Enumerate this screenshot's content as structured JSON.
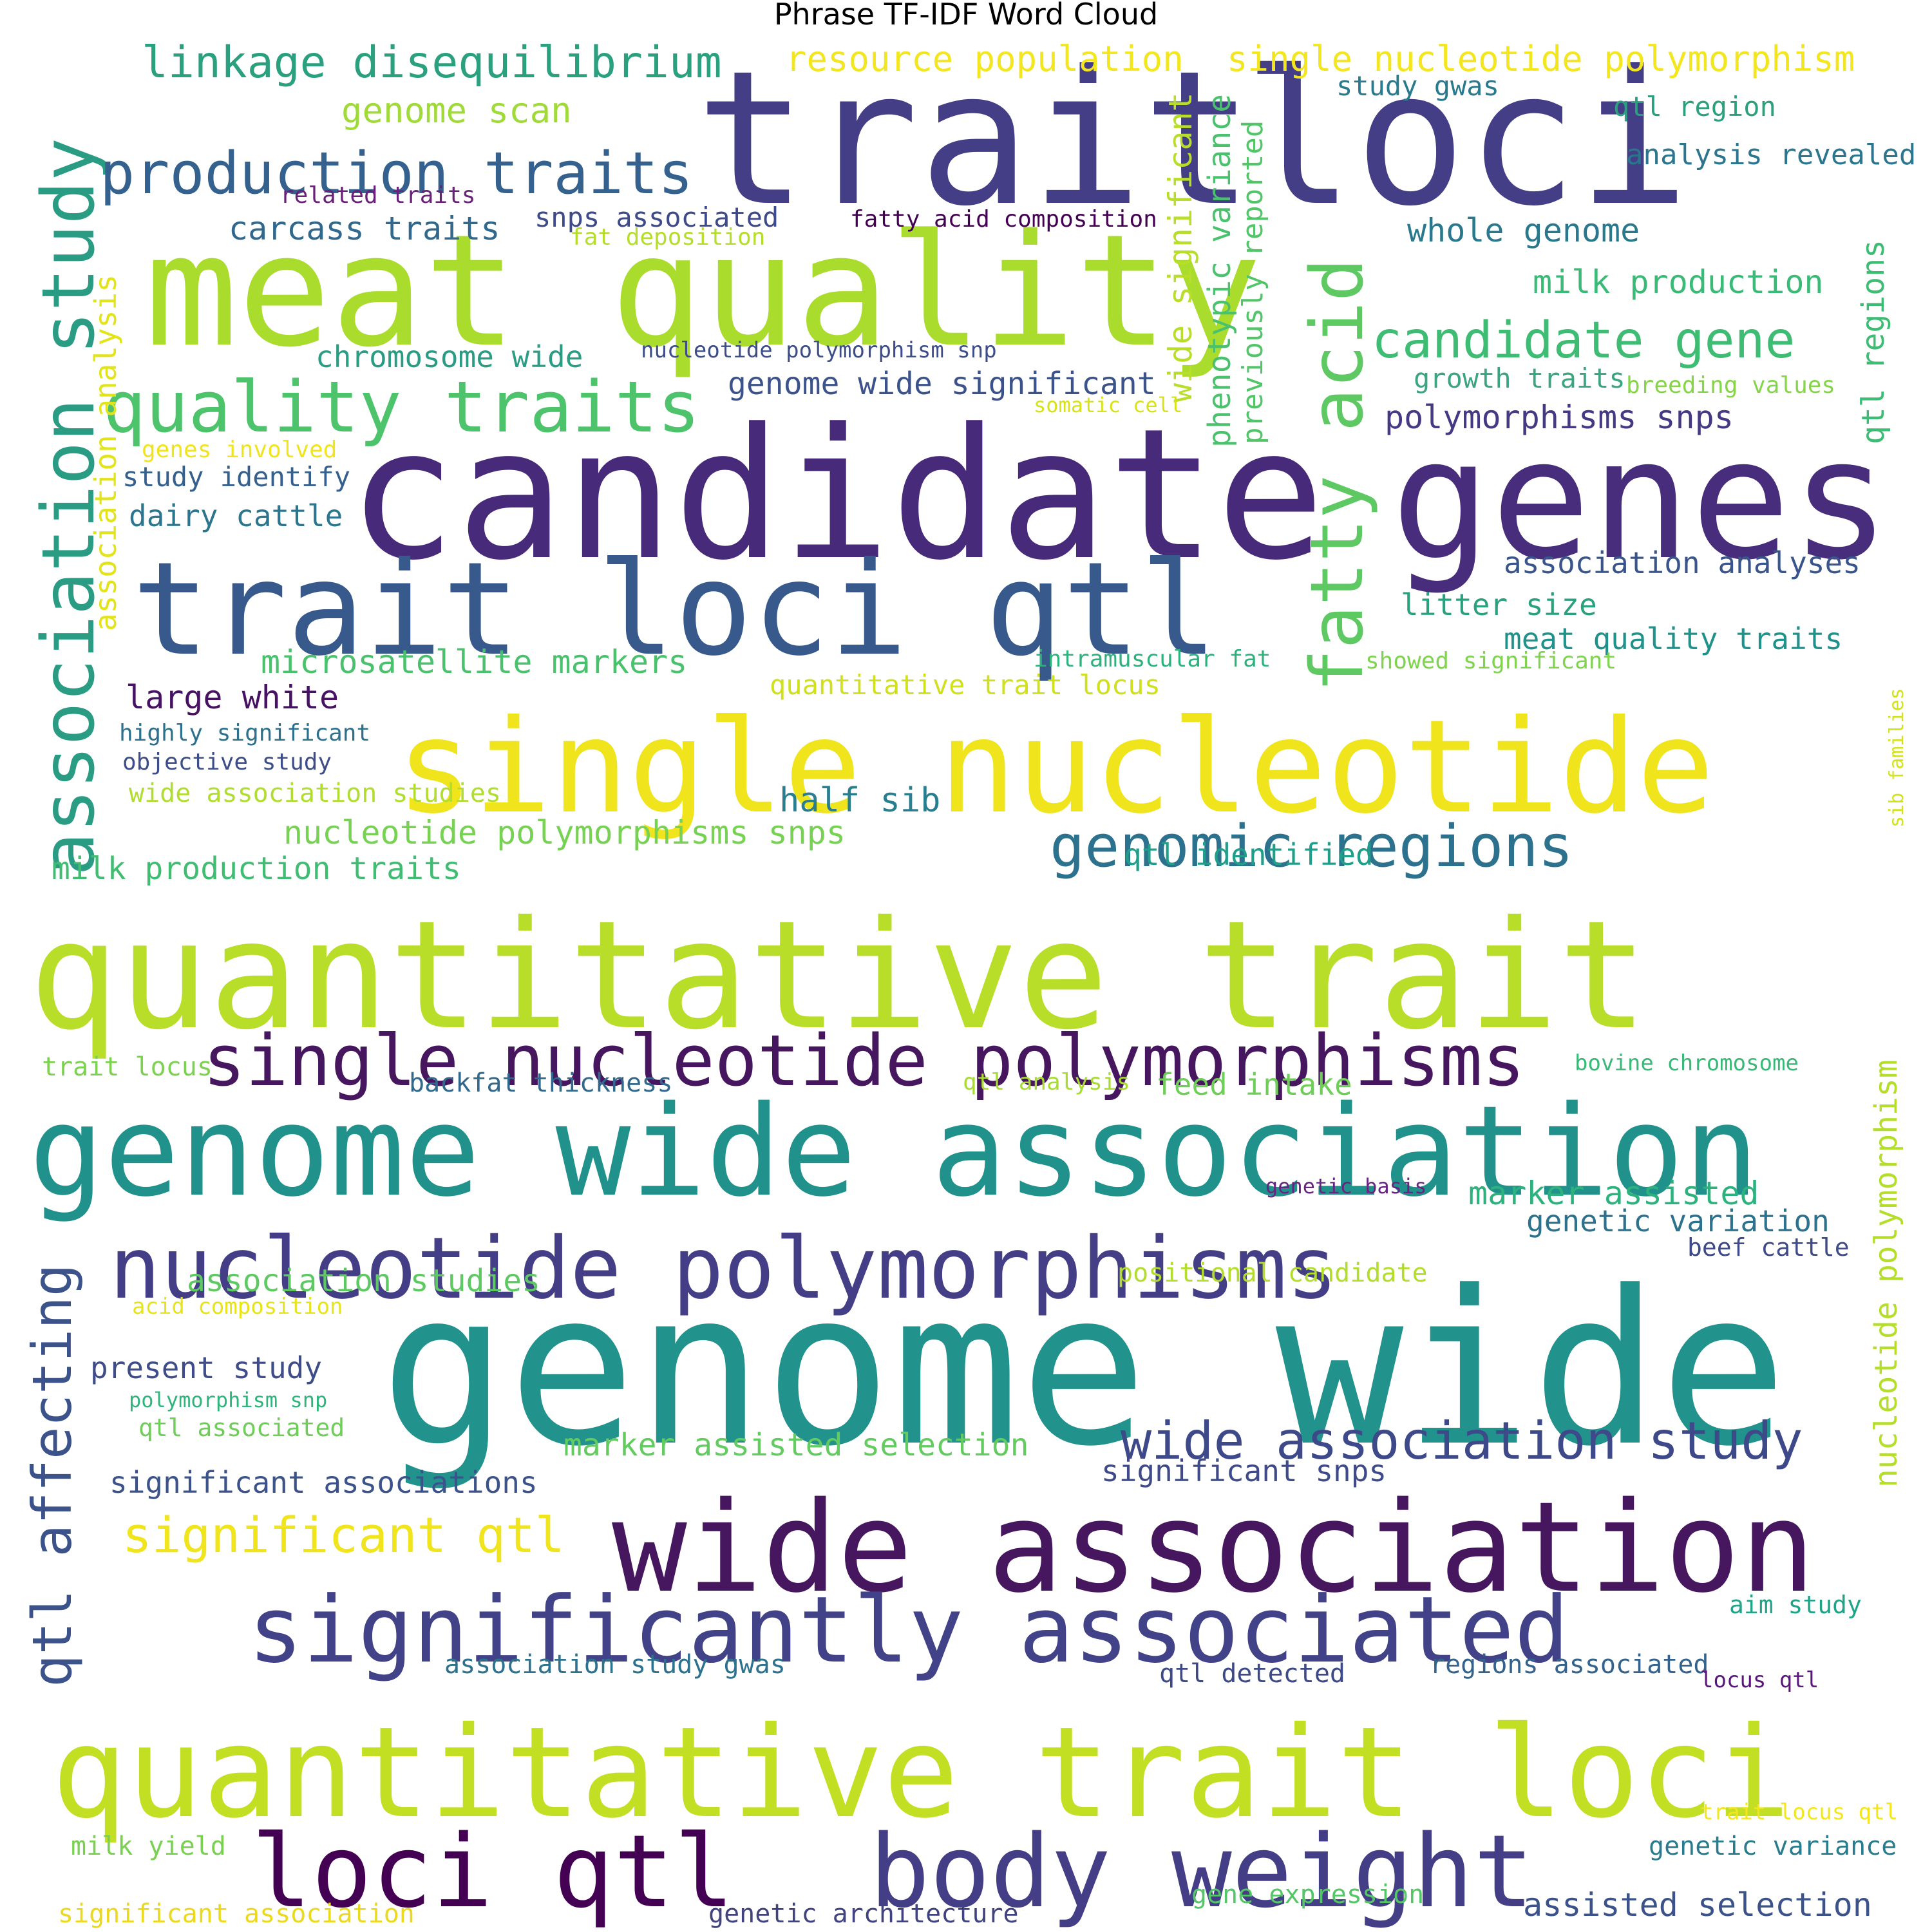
{
  "title": "Phrase TF-IDF Word Cloud",
  "palette": {
    "deep_purple": "#46175e",
    "purple": "#482777",
    "indigo": "#3f3e86",
    "blue": "#33608d",
    "teal_blue": "#2a7d8e",
    "teal": "#21928c",
    "teal_green": "#2aae7f",
    "green": "#4dc36b",
    "lime": "#8ed644",
    "yellow_green": "#c6e12b",
    "yellow": "#f0e41c"
  },
  "words": [
    {
      "text": "trait",
      "color": "#433e85"
    },
    {
      "text": "loci",
      "color": "#433e85"
    },
    {
      "text": "meat quality",
      "color": "#a9dc2c"
    },
    {
      "text": "candidate",
      "color": "#472a7a"
    },
    {
      "text": "genes",
      "color": "#472d7b"
    },
    {
      "text": "trait loci qtl",
      "color": "#38598c"
    },
    {
      "text": "single nucleotide",
      "color": "#f0e41c"
    },
    {
      "text": "quantitative trait",
      "color": "#b8de29"
    },
    {
      "text": "single nucleotide polymorphisms",
      "color": "#46175e"
    },
    {
      "text": "genome wide association",
      "color": "#21918c"
    },
    {
      "text": "nucleotide polymorphisms",
      "color": "#433e85"
    },
    {
      "text": "genome wide",
      "color": "#21928c"
    },
    {
      "text": "wide association",
      "color": "#46175e"
    },
    {
      "text": "significantly associated",
      "color": "#414287"
    },
    {
      "text": "quantitative trait loci",
      "color": "#c2df23"
    },
    {
      "text": "loci qtl",
      "color": "#440154"
    },
    {
      "text": "body weight",
      "color": "#433e85"
    },
    {
      "text": "association study",
      "color": "#2a9c83"
    },
    {
      "text": "fatty acid",
      "color": "#5ec962"
    },
    {
      "text": "quality traits",
      "color": "#4dc36b"
    },
    {
      "text": "production traits",
      "color": "#34618d"
    },
    {
      "text": "linkage disequilibrium",
      "color": "#2aa07e"
    },
    {
      "text": "genomic regions",
      "color": "#2c718e"
    },
    {
      "text": "candidate gene",
      "color": "#3fbc73"
    },
    {
      "text": "qtl affecting",
      "color": "#3b528b"
    },
    {
      "text": "wide association study",
      "color": "#3e4989"
    },
    {
      "text": "significant qtl",
      "color": "#f0e41c"
    },
    {
      "text": "resource population",
      "color": "#f4e61e"
    },
    {
      "text": "single nucleotide polymorphism",
      "color": "#f4e61e"
    },
    {
      "text": "genome scan",
      "color": "#a0da39"
    },
    {
      "text": "study gwas",
      "color": "#297a8e"
    },
    {
      "text": "qtl region",
      "color": "#2aa07e"
    },
    {
      "text": "analysis revealed",
      "color": "#2b758e"
    },
    {
      "text": "related traits",
      "color": "#6a1f7b"
    },
    {
      "text": "carcass traits",
      "color": "#31688e"
    },
    {
      "text": "snps associated",
      "color": "#3e4a89"
    },
    {
      "text": "fatty acid composition",
      "color": "#440154"
    },
    {
      "text": "fat deposition",
      "color": "#b5de2b"
    },
    {
      "text": "whole genome",
      "color": "#2a788e"
    },
    {
      "text": "milk production",
      "color": "#3aba76"
    },
    {
      "text": "wide significant",
      "color": "#b8de29"
    },
    {
      "text": "phenotypic variance",
      "color": "#4ac16d"
    },
    {
      "text": "previously reported",
      "color": "#52c569"
    },
    {
      "text": "qtl regions",
      "color": "#3dbc74"
    },
    {
      "text": "chromosome wide",
      "color": "#2a9c83"
    },
    {
      "text": "nucleotide polymorphism snp",
      "color": "#3d4d8a"
    },
    {
      "text": "genome wide significant",
      "color": "#3b528b"
    },
    {
      "text": "growth traits",
      "color": "#3ba57f"
    },
    {
      "text": "breeding values",
      "color": "#86d549"
    },
    {
      "text": "somatic cell",
      "color": "#d8e219"
    },
    {
      "text": "polymorphisms snps",
      "color": "#443983"
    },
    {
      "text": "association analysis",
      "color": "#e3e418"
    },
    {
      "text": "genes involved",
      "color": "#f0e41c"
    },
    {
      "text": "study identify",
      "color": "#35608d"
    },
    {
      "text": "dairy cattle",
      "color": "#2b758e"
    },
    {
      "text": "association analyses",
      "color": "#39558c"
    },
    {
      "text": "litter size",
      "color": "#2aa07e"
    },
    {
      "text": "meat quality traits",
      "color": "#21918c"
    },
    {
      "text": "intramuscular fat",
      "color": "#2db27d"
    },
    {
      "text": "showed significant",
      "color": "#7fd34e"
    },
    {
      "text": "microsatellite markers",
      "color": "#4ac16d"
    },
    {
      "text": "quantitative trait locus",
      "color": "#d0e11c"
    },
    {
      "text": "large white",
      "color": "#471164"
    },
    {
      "text": "highly significant",
      "color": "#2d708e"
    },
    {
      "text": "objective study",
      "color": "#3d4d8a"
    },
    {
      "text": "wide association studies",
      "color": "#b0dd2f"
    },
    {
      "text": "sib families",
      "color": "#d2e21b"
    },
    {
      "text": "half sib",
      "color": "#287d8e"
    },
    {
      "text": "nucleotide polymorphisms snps",
      "color": "#77d153"
    },
    {
      "text": "qtl identified",
      "color": "#1f9e89"
    },
    {
      "text": "milk production traits",
      "color": "#40bd72"
    },
    {
      "text": "trait locus",
      "color": "#7cd250"
    },
    {
      "text": "backfat thickness",
      "color": "#31688e"
    },
    {
      "text": "qtl analysis",
      "color": "#a8db34"
    },
    {
      "text": "feed intake",
      "color": "#6ece58"
    },
    {
      "text": "bovine chromosome",
      "color": "#38b977"
    },
    {
      "text": "nucleotide polymorphism",
      "color": "#b5de2b"
    },
    {
      "text": "genetic basis",
      "color": "#6a2383"
    },
    {
      "text": "marker assisted",
      "color": "#2db27d"
    },
    {
      "text": "genetic variation",
      "color": "#2c728e"
    },
    {
      "text": "association studies",
      "color": "#5ec962"
    },
    {
      "text": "positional candidate",
      "color": "#b2dd2d"
    },
    {
      "text": "beef cattle",
      "color": "#3e4a89"
    },
    {
      "text": "acid composition",
      "color": "#e8e419"
    },
    {
      "text": "present study",
      "color": "#3e4c8a"
    },
    {
      "text": "polymorphism snp",
      "color": "#2fb47c"
    },
    {
      "text": "qtl associated",
      "color": "#6ece58"
    },
    {
      "text": "marker assisted selection",
      "color": "#63cb5f"
    },
    {
      "text": "significant snps",
      "color": "#3e4a89"
    },
    {
      "text": "significant associations",
      "color": "#3b528b"
    },
    {
      "text": "aim study",
      "color": "#20a386"
    },
    {
      "text": "association study gwas",
      "color": "#2c728e"
    },
    {
      "text": "qtl detected",
      "color": "#3e4989"
    },
    {
      "text": "regions associated",
      "color": "#33638d"
    },
    {
      "text": "locus qtl",
      "color": "#5a167d"
    },
    {
      "text": "trait locus qtl",
      "color": "#f4e61e"
    },
    {
      "text": "milk yield",
      "color": "#7ad151"
    },
    {
      "text": "genetic variance",
      "color": "#287c8e"
    },
    {
      "text": "gene expression",
      "color": "#55c667"
    },
    {
      "text": "assisted selection",
      "color": "#3b528b"
    },
    {
      "text": "significant association",
      "color": "#ecd91f"
    },
    {
      "text": "genetic architecture",
      "color": "#40437f"
    }
  ]
}
